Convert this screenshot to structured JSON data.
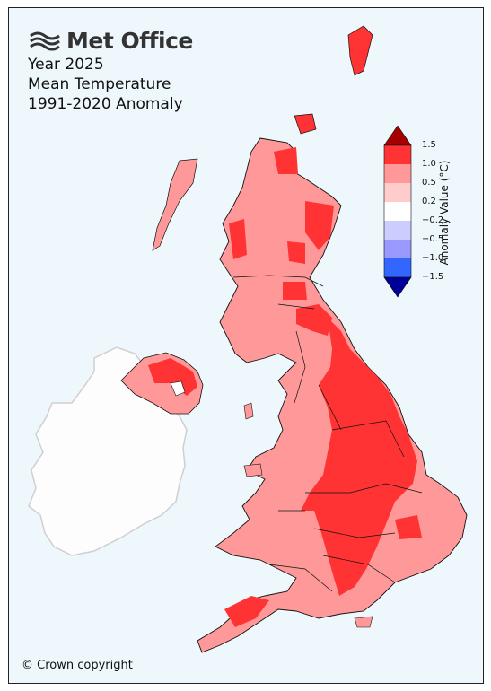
{
  "branding": {
    "logo_text": "Met Office",
    "logo_icon": "met-office-swirl-icon"
  },
  "title": {
    "line1": "Year 2025",
    "line2": "Mean Temperature",
    "line3": "1991-2020 Anomaly"
  },
  "copyright": "© Crown copyright",
  "legend": {
    "label": "Anomaly Value (°C)",
    "ticks": [
      "1.5",
      "1.0",
      "0.5",
      "0.2",
      "−0.2",
      "−0.5",
      "−1.0",
      "−1.5"
    ],
    "bins": [
      {
        "range": "> 1.5",
        "color": "#a50000"
      },
      {
        "range": "1.0 to 1.5",
        "color": "#ff3333"
      },
      {
        "range": "0.5 to 1.0",
        "color": "#ff9999"
      },
      {
        "range": "0.2 to 0.5",
        "color": "#ffcccc"
      },
      {
        "range": "-0.2 to 0.2",
        "color": "#ffffff"
      },
      {
        "range": "-0.5 to -0.2",
        "color": "#ccccff"
      },
      {
        "range": "-1.0 to -0.5",
        "color": "#9999ff"
      },
      {
        "range": "-1.5 to -1.0",
        "color": "#3366ff"
      },
      {
        "range": "< -1.5",
        "color": "#000099"
      }
    ]
  },
  "colors": {
    "sea": "#eef7fb",
    "ireland": "#fdfdfd",
    "border": "#111111"
  }
}
